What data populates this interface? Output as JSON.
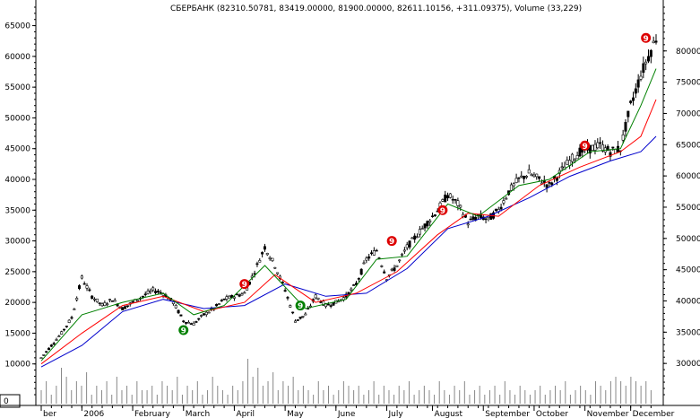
{
  "header": {
    "title": "СБЕРБАНК (82310.50781, 83419.00000, 81900.00000, 82611.10156, +311.09375), Volume (33,229)"
  },
  "colors": {
    "candle": "#000000",
    "ma_fast": "#008000",
    "ma_mid": "#ff0000",
    "ma_slow": "#0000cc",
    "signal_red": "#dd0000",
    "signal_green": "#008000",
    "volume": "#888888"
  },
  "chart_data": {
    "type": "candlestick",
    "title": "СБЕРБАНК (82310.50781, 83419.00000, 81900.00000, 82611.10156, +311.09375), Volume (33,229)",
    "x_tick_labels": [
      "ber",
      "2006",
      "February",
      "March",
      "April",
      "May",
      "June",
      "July",
      "August",
      "September",
      "October",
      "November",
      "December"
    ],
    "left_axis": {
      "ticks": [
        10000,
        15000,
        20000,
        25000,
        30000,
        35000,
        40000,
        45000,
        50000,
        55000,
        60000,
        65000
      ],
      "range": [
        5000,
        68000
      ]
    },
    "right_axis": {
      "ticks": [
        30000,
        35000,
        40000,
        45000,
        50000,
        55000,
        60000,
        65000,
        70000,
        75000,
        80000
      ]
    },
    "volume_axis": {
      "ticks": [
        0
      ]
    },
    "price_series": [
      {
        "x": 0,
        "y": 11000
      },
      {
        "x": 2,
        "y": 13000
      },
      {
        "x": 4,
        "y": 15000
      },
      {
        "x": 6,
        "y": 17500
      },
      {
        "x": 8,
        "y": 24000
      },
      {
        "x": 10,
        "y": 21000
      },
      {
        "x": 12,
        "y": 19500
      },
      {
        "x": 14,
        "y": 20500
      },
      {
        "x": 16,
        "y": 19000
      },
      {
        "x": 18,
        "y": 20000
      },
      {
        "x": 20,
        "y": 21000
      },
      {
        "x": 22,
        "y": 22000
      },
      {
        "x": 24,
        "y": 21500
      },
      {
        "x": 26,
        "y": 20000
      },
      {
        "x": 28,
        "y": 17000
      },
      {
        "x": 30,
        "y": 16500
      },
      {
        "x": 32,
        "y": 18000
      },
      {
        "x": 34,
        "y": 19000
      },
      {
        "x": 36,
        "y": 20500
      },
      {
        "x": 38,
        "y": 21000
      },
      {
        "x": 40,
        "y": 21500
      },
      {
        "x": 42,
        "y": 25000
      },
      {
        "x": 44,
        "y": 29000
      },
      {
        "x": 46,
        "y": 26000
      },
      {
        "x": 48,
        "y": 22000
      },
      {
        "x": 50,
        "y": 17000
      },
      {
        "x": 52,
        "y": 18000
      },
      {
        "x": 54,
        "y": 21000
      },
      {
        "x": 56,
        "y": 19500
      },
      {
        "x": 58,
        "y": 20000
      },
      {
        "x": 60,
        "y": 21000
      },
      {
        "x": 62,
        "y": 23000
      },
      {
        "x": 64,
        "y": 27000
      },
      {
        "x": 66,
        "y": 28500
      },
      {
        "x": 68,
        "y": 24000
      },
      {
        "x": 70,
        "y": 26000
      },
      {
        "x": 72,
        "y": 29000
      },
      {
        "x": 74,
        "y": 31000
      },
      {
        "x": 76,
        "y": 33000
      },
      {
        "x": 78,
        "y": 35000
      },
      {
        "x": 80,
        "y": 37500
      },
      {
        "x": 82,
        "y": 36000
      },
      {
        "x": 84,
        "y": 33000
      },
      {
        "x": 86,
        "y": 34000
      },
      {
        "x": 88,
        "y": 33500
      },
      {
        "x": 90,
        "y": 35000
      },
      {
        "x": 92,
        "y": 38000
      },
      {
        "x": 94,
        "y": 40000
      },
      {
        "x": 96,
        "y": 41000
      },
      {
        "x": 98,
        "y": 40000
      },
      {
        "x": 100,
        "y": 39000
      },
      {
        "x": 102,
        "y": 41000
      },
      {
        "x": 104,
        "y": 43000
      },
      {
        "x": 106,
        "y": 44500
      },
      {
        "x": 108,
        "y": 45000
      },
      {
        "x": 110,
        "y": 45500
      },
      {
        "x": 112,
        "y": 44500
      },
      {
        "x": 114,
        "y": 45000
      },
      {
        "x": 116,
        "y": 52000
      },
      {
        "x": 118,
        "y": 57000
      },
      {
        "x": 120,
        "y": 61000
      },
      {
        "x": 121,
        "y": 63000
      }
    ],
    "ma_fast": [
      {
        "x": 0,
        "y": 10500
      },
      {
        "x": 8,
        "y": 18000
      },
      {
        "x": 16,
        "y": 20000
      },
      {
        "x": 24,
        "y": 21500
      },
      {
        "x": 30,
        "y": 18000
      },
      {
        "x": 36,
        "y": 19500
      },
      {
        "x": 44,
        "y": 26000
      },
      {
        "x": 52,
        "y": 19000
      },
      {
        "x": 60,
        "y": 20500
      },
      {
        "x": 66,
        "y": 27000
      },
      {
        "x": 72,
        "y": 27500
      },
      {
        "x": 80,
        "y": 36000
      },
      {
        "x": 86,
        "y": 34000
      },
      {
        "x": 94,
        "y": 39000
      },
      {
        "x": 100,
        "y": 40000
      },
      {
        "x": 108,
        "y": 44500
      },
      {
        "x": 114,
        "y": 45000
      },
      {
        "x": 118,
        "y": 52000
      },
      {
        "x": 121,
        "y": 58000
      }
    ],
    "ma_mid": [
      {
        "x": 0,
        "y": 10000
      },
      {
        "x": 8,
        "y": 15000
      },
      {
        "x": 16,
        "y": 19500
      },
      {
        "x": 24,
        "y": 21000
      },
      {
        "x": 32,
        "y": 18500
      },
      {
        "x": 40,
        "y": 20000
      },
      {
        "x": 46,
        "y": 24500
      },
      {
        "x": 54,
        "y": 20000
      },
      {
        "x": 62,
        "y": 21500
      },
      {
        "x": 70,
        "y": 25000
      },
      {
        "x": 78,
        "y": 31000
      },
      {
        "x": 84,
        "y": 34500
      },
      {
        "x": 90,
        "y": 34000
      },
      {
        "x": 98,
        "y": 39000
      },
      {
        "x": 106,
        "y": 42000
      },
      {
        "x": 114,
        "y": 44500
      },
      {
        "x": 118,
        "y": 47000
      },
      {
        "x": 121,
        "y": 53000
      }
    ],
    "ma_slow": [
      {
        "x": 0,
        "y": 9500
      },
      {
        "x": 8,
        "y": 13000
      },
      {
        "x": 16,
        "y": 18500
      },
      {
        "x": 24,
        "y": 20500
      },
      {
        "x": 32,
        "y": 19000
      },
      {
        "x": 40,
        "y": 19500
      },
      {
        "x": 48,
        "y": 23000
      },
      {
        "x": 56,
        "y": 21000
      },
      {
        "x": 64,
        "y": 21500
      },
      {
        "x": 72,
        "y": 25500
      },
      {
        "x": 80,
        "y": 32000
      },
      {
        "x": 88,
        "y": 34000
      },
      {
        "x": 96,
        "y": 37000
      },
      {
        "x": 104,
        "y": 40500
      },
      {
        "x": 112,
        "y": 43000
      },
      {
        "x": 118,
        "y": 44500
      },
      {
        "x": 121,
        "y": 47000
      }
    ],
    "signals": [
      {
        "x": 28,
        "y": 15500,
        "label": "9",
        "kind": "green"
      },
      {
        "x": 40,
        "y": 23000,
        "label": "9",
        "kind": "red"
      },
      {
        "x": 51,
        "y": 19500,
        "label": "9",
        "kind": "green"
      },
      {
        "x": 69,
        "y": 30000,
        "label": "9",
        "kind": "red"
      },
      {
        "x": 79,
        "y": 35000,
        "label": "9",
        "kind": "red"
      },
      {
        "x": 107,
        "y": 45500,
        "label": "9",
        "kind": "red"
      },
      {
        "x": 119,
        "y": 63000,
        "label": "9",
        "kind": "red"
      }
    ],
    "volume_bars_relative": [
      0.3,
      0.5,
      0.2,
      0.4,
      0.8,
      0.6,
      0.3,
      0.5,
      0.4,
      0.7,
      0.2,
      0.4,
      0.3,
      0.5,
      0.2,
      0.6,
      0.3,
      0.4,
      0.2,
      0.5,
      0.3,
      0.3,
      0.4,
      0.2,
      0.5,
      0.4,
      0.3,
      0.6,
      0.2,
      0.4,
      0.3,
      0.5,
      0.2,
      0.3,
      0.6,
      0.4,
      0.3,
      0.2,
      0.4,
      0.3,
      0.5,
      1.0,
      0.6,
      0.8,
      0.4,
      0.5,
      0.7,
      0.3,
      0.5,
      0.4,
      0.6,
      0.3,
      0.4,
      0.3,
      0.2,
      0.5,
      0.3,
      0.4,
      0.2,
      0.3,
      0.5,
      0.4,
      0.3,
      0.4,
      0.2,
      0.3,
      0.5,
      0.2,
      0.4,
      0.3,
      0.2,
      0.4,
      0.3,
      0.5,
      0.2,
      0.3,
      0.4,
      0.3,
      0.2,
      0.5,
      0.3,
      0.2,
      0.4,
      0.3,
      0.5,
      0.2,
      0.3,
      0.4,
      0.2,
      0.3,
      0.4,
      0.2,
      0.5,
      0.3,
      0.2,
      0.4,
      0.3,
      0.2,
      0.3,
      0.4,
      0.2,
      0.3,
      0.4,
      0.3,
      0.5,
      0.2,
      0.3,
      0.4,
      0.3,
      0.2,
      0.5,
      0.4,
      0.3,
      0.5,
      0.6,
      0.5,
      0.4,
      0.6,
      0.5,
      0.4,
      0.5,
      0.3
    ]
  }
}
